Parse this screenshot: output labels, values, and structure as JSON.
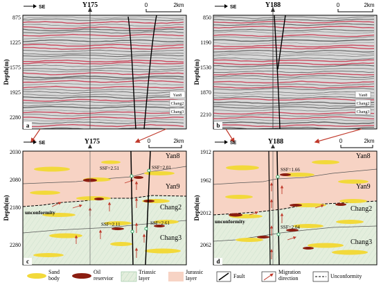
{
  "panels": {
    "a": {
      "letter": "a",
      "well": "Y175",
      "direction": "SE",
      "scale_zero": "0",
      "scale_end": "2km",
      "y_ticks": [
        "875",
        "1225",
        "1575",
        "1925",
        "2280"
      ],
      "y_axis_label": "Depth(m)",
      "tags": [
        "Yan8",
        "Chang2",
        "Chang3"
      ]
    },
    "b": {
      "letter": "b",
      "well": "Y188",
      "direction": "SE",
      "scale_zero": "0",
      "scale_end": "2km",
      "y_ticks": [
        "850",
        "1190",
        "1530",
        "1870",
        "2210"
      ],
      "y_axis_label": "Depth(m)",
      "tags": [
        "Yan8",
        "Chang2",
        "Chang3"
      ]
    },
    "c": {
      "letter": "c",
      "well": "Y175",
      "direction": "SE",
      "scale_zero": "0",
      "scale_end": "2km",
      "y_ticks": [
        "2030",
        "2080",
        "2180",
        "2280"
      ],
      "y_axis_label": "Depth(m)",
      "layers": [
        "Yan8",
        "Yan9",
        "Chang2",
        "Chang3"
      ],
      "unconformity_label": "unconformity",
      "ssf": [
        "SSF=2.51",
        "SSF=2.01",
        "SSF=2.11",
        "SSF=2.61"
      ]
    },
    "d": {
      "letter": "d",
      "well": "Y188",
      "direction": "SE",
      "scale_zero": "0",
      "scale_end": "2km",
      "y_ticks": [
        "1912",
        "1962",
        "2012",
        "2062"
      ],
      "y_axis_label": "Depth(m)",
      "layers": [
        "Yan8",
        "Yan9",
        "Chang2",
        "Chang3"
      ],
      "unconformity_label": "unconformity",
      "ssf": [
        "SSF=1.66",
        "SSF=2.04"
      ]
    }
  },
  "legend": {
    "sand": "Sand\nbody",
    "oil": "Oil\nreservior",
    "triassic": "Triassic\nlayer",
    "jurassic": "Jurassic\nlayer",
    "fault": "Fault",
    "migration": "Migration\ndirection",
    "unconformity": "Unconformity"
  },
  "colors": {
    "jurassic_fill": "#f7d3c4",
    "triassic_fill": "#e4eedd",
    "sand": "#f2d93a",
    "oil": "#8b1d10",
    "arrow": "#c0392b",
    "seismic_red": "#c8324a"
  }
}
